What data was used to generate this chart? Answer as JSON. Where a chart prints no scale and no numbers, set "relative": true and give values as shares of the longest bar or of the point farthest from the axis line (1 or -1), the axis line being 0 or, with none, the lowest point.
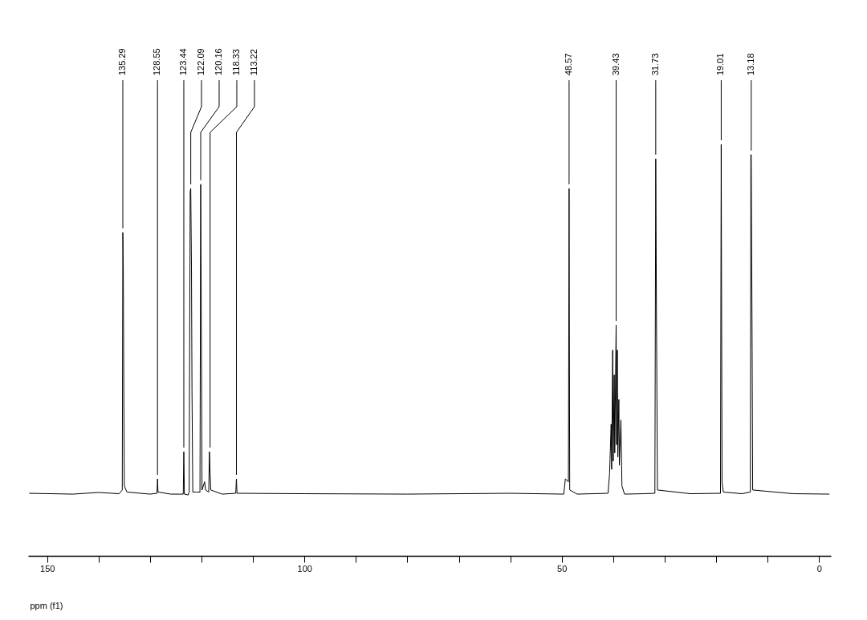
{
  "chart_data": {
    "type": "line",
    "relative": true,
    "xlabel": "ppm (f1)",
    "xlim": [
      153.7,
      -2.3
    ],
    "xticks": [
      150,
      {
        "value": 140,
        "label": null
      },
      {
        "value": 130,
        "label": null
      },
      {
        "value": 120,
        "label": null
      },
      {
        "value": 110,
        "label": null
      },
      100,
      {
        "value": 90,
        "label": null
      },
      {
        "value": 80,
        "label": null
      },
      {
        "value": 70,
        "label": null
      },
      {
        "value": 60,
        "label": null
      },
      50,
      {
        "value": 40,
        "label": null
      },
      {
        "value": 30,
        "label": null
      },
      {
        "value": 20,
        "label": null
      },
      {
        "value": 10,
        "label": null
      },
      0
    ],
    "x": [
      153.5,
      145,
      140,
      136,
      135.4,
      135.29,
      135.2,
      135.1,
      135,
      134.5,
      130,
      128.65,
      128.55,
      128.45,
      126,
      123.55,
      123.44,
      123.33,
      122.6,
      122.4,
      122.2,
      122.09,
      121.95,
      121.85,
      121.7,
      121,
      120.3,
      120.16,
      120.05,
      119.9,
      119.4,
      119.2,
      118.6,
      118.45,
      118.33,
      118.2,
      116,
      113.35,
      113.22,
      113.1,
      100,
      80,
      60,
      49.6,
      49.3,
      48.7,
      48.57,
      48.45,
      47,
      41,
      40.7,
      40.4,
      40.3,
      40.1,
      40,
      39.8,
      39.7,
      39.43,
      39.35,
      39.2,
      39.1,
      38.9,
      38.8,
      38.5,
      38.3,
      37.8,
      34,
      31.9,
      31.73,
      31.6,
      31.4,
      25,
      19.15,
      19.01,
      18.85,
      18.6,
      15,
      13.35,
      13.25,
      13.18,
      13.1,
      13,
      12.9,
      5,
      -2
    ],
    "series": [
      {
        "color": "#000000",
        "values": [
          0.152,
          0.15,
          0.154,
          0.151,
          0.16,
          0.786,
          0.7,
          0.4,
          0.17,
          0.155,
          0.15,
          0.152,
          0.187,
          0.155,
          0.15,
          0.15,
          0.253,
          0.15,
          0.148,
          0.155,
          0.885,
          0.893,
          0.7,
          0.4,
          0.155,
          0.155,
          0.155,
          0.903,
          0.6,
          0.16,
          0.18,
          0.16,
          0.155,
          0.253,
          0.2,
          0.16,
          0.15,
          0.152,
          0.187,
          0.152,
          0.151,
          0.15,
          0.152,
          0.15,
          0.187,
          0.18,
          0.893,
          0.16,
          0.15,
          0.152,
          0.2,
          0.32,
          0.21,
          0.5,
          0.23,
          0.44,
          0.25,
          0.561,
          0.27,
          0.5,
          0.24,
          0.38,
          0.22,
          0.33,
          0.17,
          0.15,
          0.151,
          0.152,
          0.965,
          0.6,
          0.16,
          0.151,
          0.152,
          1.0,
          0.18,
          0.155,
          0.151,
          0.155,
          0.975,
          0.975,
          0.766,
          0.5,
          0.16,
          0.151,
          0.15
        ]
      }
    ],
    "marker": "none",
    "grid": false,
    "annotations": [
      {
        "text": "135.29",
        "x": 135.29,
        "y": 0.786
      },
      {
        "text": "128.55",
        "x": 128.55,
        "y": 0.187
      },
      {
        "text": "123.44",
        "x": 123.44,
        "y": 0.253
      },
      {
        "text": "122.09",
        "x": 122.09,
        "y": 0.893
      },
      {
        "text": "120.16",
        "x": 120.16,
        "y": 0.903
      },
      {
        "text": "118.33",
        "x": 118.33,
        "y": 0.253
      },
      {
        "text": "113.22",
        "x": 113.22,
        "y": 0.187
      },
      {
        "text": "48.57",
        "x": 48.57,
        "y": 0.893
      },
      {
        "text": "39.43",
        "x": 39.43,
        "y": 0.561
      },
      {
        "text": "31.73",
        "x": 31.73,
        "y": 0.965
      },
      {
        "text": "19.01",
        "x": 19.01,
        "y": 1.0
      },
      {
        "text": "13.18",
        "x": 13.18,
        "y": 0.975
      }
    ]
  }
}
